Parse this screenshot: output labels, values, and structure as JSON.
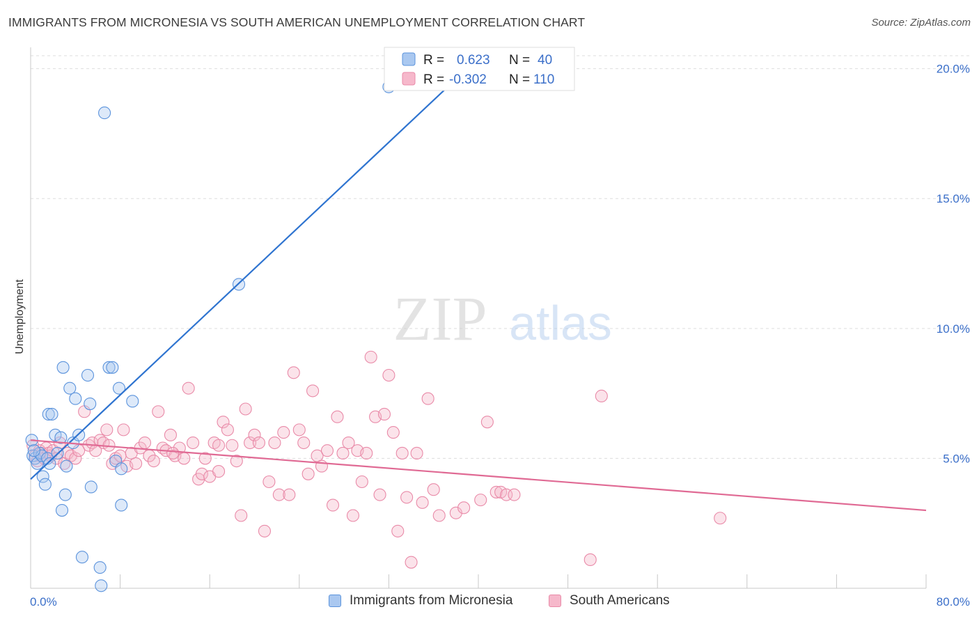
{
  "title": "IMMIGRANTS FROM MICRONESIA VS SOUTH AMERICAN UNEMPLOYMENT CORRELATION CHART",
  "source": "Source: ZipAtlas.com",
  "watermark": {
    "zip": "ZIP",
    "atlas": "atlas"
  },
  "colors": {
    "blue_fill": "#aac8f0",
    "blue_stroke": "#5b93dc",
    "blue_line": "#2f74d0",
    "pink_fill": "#f6b8cb",
    "pink_stroke": "#e98aa8",
    "pink_line": "#e06a94",
    "tick_text": "#3b6fc9",
    "grid": "#dddddd"
  },
  "legend": {
    "series": [
      {
        "r_label": "R =",
        "r_value": "0.623",
        "n_label": "N =",
        "n_value": "40"
      },
      {
        "r_label": "R =",
        "r_value": "-0.302",
        "n_label": "N =",
        "n_value": "110"
      }
    ]
  },
  "chart_data": {
    "type": "scatter",
    "ylabel": "Unemployment",
    "xlim": [
      0,
      80
    ],
    "ylim": [
      0,
      20.5
    ],
    "x_tick_labels": [
      "0.0%",
      "80.0%"
    ],
    "y_ticks": [
      5,
      10,
      15,
      20
    ],
    "y_tick_labels": [
      "5.0%",
      "10.0%",
      "15.0%",
      "20.0%"
    ],
    "grid": true,
    "legend_position": "top-center",
    "series": [
      {
        "name": "Immigrants from Micronesia",
        "color": "blue",
        "trend": {
          "x0": 0,
          "y0": 4.2,
          "x1": 38.5,
          "y1": 19.8
        },
        "points": [
          [
            0.1,
            5.7
          ],
          [
            0.2,
            5.1
          ],
          [
            0.4,
            5.0
          ],
          [
            0.6,
            4.8
          ],
          [
            0.8,
            5.2
          ],
          [
            1.0,
            5.1
          ],
          [
            1.1,
            4.3
          ],
          [
            1.3,
            4.0
          ],
          [
            1.5,
            5.0
          ],
          [
            1.6,
            6.7
          ],
          [
            1.7,
            4.8
          ],
          [
            1.9,
            6.7
          ],
          [
            2.2,
            5.9
          ],
          [
            2.4,
            5.2
          ],
          [
            2.7,
            5.8
          ],
          [
            2.8,
            3.0
          ],
          [
            2.9,
            8.5
          ],
          [
            3.1,
            3.6
          ],
          [
            3.2,
            4.7
          ],
          [
            3.5,
            7.7
          ],
          [
            3.8,
            5.6
          ],
          [
            4.0,
            7.3
          ],
          [
            4.3,
            5.9
          ],
          [
            4.6,
            1.2
          ],
          [
            5.1,
            8.2
          ],
          [
            5.3,
            7.1
          ],
          [
            5.4,
            3.9
          ],
          [
            6.2,
            0.8
          ],
          [
            6.3,
            0.1
          ],
          [
            6.6,
            18.3
          ],
          [
            7.0,
            8.5
          ],
          [
            7.3,
            8.5
          ],
          [
            7.6,
            4.9
          ],
          [
            7.9,
            7.7
          ],
          [
            8.1,
            4.6
          ],
          [
            8.1,
            3.2
          ],
          [
            9.1,
            7.2
          ],
          [
            18.6,
            11.7
          ],
          [
            32.0,
            19.3
          ],
          [
            0.3,
            5.3
          ]
        ]
      },
      {
        "name": "South Americans",
        "color": "pink",
        "trend": {
          "x0": 0,
          "y0": 5.7,
          "x1": 80,
          "y1": 3.0
        },
        "points": [
          [
            0.2,
            5.5
          ],
          [
            0.4,
            5.1
          ],
          [
            0.6,
            4.9
          ],
          [
            0.8,
            5.3
          ],
          [
            1.0,
            5.2
          ],
          [
            1.2,
            5.0
          ],
          [
            1.4,
            5.4
          ],
          [
            1.6,
            5.2
          ],
          [
            1.8,
            5.1
          ],
          [
            2.0,
            5.3
          ],
          [
            2.3,
            5.0
          ],
          [
            2.6,
            5.6
          ],
          [
            3.0,
            4.8
          ],
          [
            3.3,
            5.2
          ],
          [
            3.6,
            5.1
          ],
          [
            4.0,
            5.0
          ],
          [
            4.3,
            5.3
          ],
          [
            4.8,
            6.8
          ],
          [
            5.2,
            5.5
          ],
          [
            5.5,
            5.6
          ],
          [
            5.8,
            5.3
          ],
          [
            6.2,
            5.7
          ],
          [
            6.5,
            5.6
          ],
          [
            6.8,
            6.1
          ],
          [
            7.0,
            5.5
          ],
          [
            7.3,
            4.8
          ],
          [
            7.6,
            5.0
          ],
          [
            8.0,
            5.1
          ],
          [
            8.3,
            6.1
          ],
          [
            8.6,
            4.7
          ],
          [
            9.0,
            5.2
          ],
          [
            9.4,
            4.8
          ],
          [
            9.8,
            5.4
          ],
          [
            10.2,
            5.6
          ],
          [
            10.6,
            5.1
          ],
          [
            11.0,
            4.9
          ],
          [
            11.4,
            6.8
          ],
          [
            11.8,
            5.4
          ],
          [
            12.1,
            5.3
          ],
          [
            12.5,
            5.9
          ],
          [
            12.9,
            5.1
          ],
          [
            13.3,
            5.4
          ],
          [
            13.7,
            5.0
          ],
          [
            14.1,
            7.7
          ],
          [
            14.5,
            5.6
          ],
          [
            15.0,
            4.2
          ],
          [
            15.3,
            4.4
          ],
          [
            15.6,
            5.0
          ],
          [
            16.0,
            4.3
          ],
          [
            16.4,
            5.6
          ],
          [
            16.8,
            4.5
          ],
          [
            17.2,
            6.4
          ],
          [
            17.6,
            6.1
          ],
          [
            18.0,
            5.5
          ],
          [
            18.4,
            4.9
          ],
          [
            18.8,
            2.8
          ],
          [
            19.2,
            6.9
          ],
          [
            19.6,
            5.6
          ],
          [
            20.0,
            5.9
          ],
          [
            20.4,
            5.6
          ],
          [
            20.9,
            2.2
          ],
          [
            21.3,
            4.1
          ],
          [
            21.8,
            5.6
          ],
          [
            22.2,
            3.6
          ],
          [
            22.6,
            6.0
          ],
          [
            23.1,
            3.6
          ],
          [
            23.5,
            8.3
          ],
          [
            24.0,
            6.1
          ],
          [
            24.4,
            5.6
          ],
          [
            24.8,
            4.4
          ],
          [
            25.2,
            7.6
          ],
          [
            25.6,
            5.1
          ],
          [
            26.0,
            4.7
          ],
          [
            26.5,
            5.3
          ],
          [
            27.0,
            3.2
          ],
          [
            27.4,
            6.6
          ],
          [
            27.9,
            5.2
          ],
          [
            28.4,
            5.6
          ],
          [
            28.8,
            2.8
          ],
          [
            29.2,
            5.3
          ],
          [
            29.6,
            4.1
          ],
          [
            30.0,
            5.2
          ],
          [
            30.4,
            8.9
          ],
          [
            30.8,
            6.6
          ],
          [
            31.2,
            3.6
          ],
          [
            31.6,
            6.7
          ],
          [
            32.0,
            8.2
          ],
          [
            32.4,
            6.0
          ],
          [
            32.8,
            2.2
          ],
          [
            33.2,
            5.2
          ],
          [
            33.6,
            3.5
          ],
          [
            34.0,
            1.0
          ],
          [
            34.5,
            5.2
          ],
          [
            35.0,
            3.3
          ],
          [
            35.5,
            7.3
          ],
          [
            36.0,
            3.8
          ],
          [
            36.5,
            2.8
          ],
          [
            38.0,
            2.9
          ],
          [
            38.7,
            3.1
          ],
          [
            40.2,
            3.4
          ],
          [
            40.8,
            6.4
          ],
          [
            41.6,
            3.7
          ],
          [
            42.0,
            3.7
          ],
          [
            42.5,
            3.6
          ],
          [
            43.2,
            3.6
          ],
          [
            50.0,
            1.1
          ],
          [
            51.0,
            7.4
          ],
          [
            61.6,
            2.7
          ],
          [
            16.8,
            5.5
          ],
          [
            12.7,
            5.2
          ]
        ]
      }
    ]
  },
  "bottom_legend": [
    {
      "label": "Immigrants from Micronesia"
    },
    {
      "label": "South Americans"
    }
  ]
}
